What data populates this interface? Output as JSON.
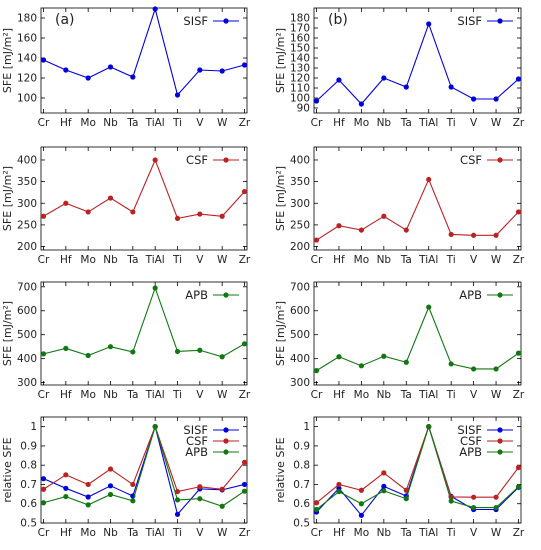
{
  "chart_data": [
    {
      "type": "line",
      "panel_label": "(a)",
      "categories": [
        "Cr",
        "Hf",
        "Mo",
        "Nb",
        "Ta",
        "TiAl",
        "Ti",
        "V",
        "W",
        "Zr"
      ],
      "ylabel": "SFE [mJ/m²]",
      "ylim": [
        85,
        190
      ],
      "yticks": [
        100,
        120,
        140,
        160,
        180
      ],
      "legend": "top-right",
      "series": [
        {
          "name": "SISF",
          "color": "#0000dd",
          "values": [
            138,
            128,
            120,
            131,
            121,
            189,
            103,
            128,
            127,
            133
          ]
        }
      ]
    },
    {
      "type": "line",
      "panel_label": "(b)",
      "categories": [
        "Cr",
        "Hf",
        "Mo",
        "Nb",
        "Ta",
        "TiAl",
        "Ti",
        "V",
        "W",
        "Zr"
      ],
      "ylabel": "SFE [mJ/m²]",
      "ylim": [
        85,
        190
      ],
      "yticks": [
        90,
        100,
        110,
        120,
        130,
        140,
        150,
        160,
        170,
        180
      ],
      "legend": "top-right",
      "series": [
        {
          "name": "SISF",
          "color": "#0000dd",
          "values": [
            97,
            118,
            94,
            120,
            111,
            174,
            111,
            99,
            99,
            119
          ]
        }
      ]
    },
    {
      "type": "line",
      "categories": [
        "Cr",
        "Hf",
        "Mo",
        "Nb",
        "Ta",
        "TiAl",
        "Ti",
        "V",
        "W",
        "Zr"
      ],
      "ylabel": "SFE [mJ/m²]",
      "ylim": [
        192,
        430
      ],
      "yticks": [
        200,
        250,
        300,
        350,
        400
      ],
      "legend": "top-right",
      "series": [
        {
          "name": "CSF",
          "color": "#bb2222",
          "values": [
            270,
            300,
            280,
            312,
            280,
            400,
            265,
            275,
            270,
            327
          ]
        }
      ]
    },
    {
      "type": "line",
      "categories": [
        "Cr",
        "Hf",
        "Mo",
        "Nb",
        "Ta",
        "TiAl",
        "Ti",
        "V",
        "W",
        "Zr"
      ],
      "ylabel": "SFE [mJ/m²]",
      "ylim": [
        192,
        430
      ],
      "yticks": [
        200,
        250,
        300,
        350,
        400
      ],
      "legend": "top-right",
      "series": [
        {
          "name": "CSF",
          "color": "#bb2222",
          "values": [
            215,
            248,
            238,
            270,
            238,
            355,
            228,
            226,
            226,
            280
          ]
        }
      ]
    },
    {
      "type": "line",
      "categories": [
        "Cr",
        "Hf",
        "Mo",
        "Nb",
        "Ta",
        "TiAl",
        "Ti",
        "V",
        "W",
        "Zr"
      ],
      "ylabel": "SFE [mJ/m²]",
      "ylim": [
        290,
        720
      ],
      "yticks": [
        300,
        400,
        500,
        600,
        700
      ],
      "legend": "top-right",
      "series": [
        {
          "name": "APB",
          "color": "#117711",
          "values": [
            420,
            443,
            413,
            450,
            428,
            695,
            430,
            435,
            408,
            462
          ]
        }
      ]
    },
    {
      "type": "line",
      "categories": [
        "Cr",
        "Hf",
        "Mo",
        "Nb",
        "Ta",
        "TiAl",
        "Ti",
        "V",
        "W",
        "Zr"
      ],
      "ylabel": "SFE [mJ/m²]",
      "ylim": [
        290,
        720
      ],
      "yticks": [
        300,
        400,
        500,
        600,
        700
      ],
      "legend": "top-right",
      "series": [
        {
          "name": "APB",
          "color": "#117711",
          "values": [
            350,
            408,
            370,
            410,
            385,
            615,
            378,
            357,
            357,
            423
          ]
        }
      ]
    },
    {
      "type": "line",
      "categories": [
        "Cr",
        "Hf",
        "Mo",
        "Nb",
        "Ta",
        "TiAl",
        "Ti",
        "V",
        "W",
        "Zr"
      ],
      "ylabel": "relative SFE",
      "ylim": [
        0.5,
        1.05
      ],
      "yticks": [
        0.5,
        0.6,
        0.7,
        0.8,
        0.9,
        1
      ],
      "legend": "top-right",
      "series": [
        {
          "name": "SISF",
          "color": "#0000dd",
          "values": [
            0.73,
            0.68,
            0.635,
            0.693,
            0.64,
            1,
            0.545,
            0.677,
            0.672,
            0.7
          ]
        },
        {
          "name": "CSF",
          "color": "#bb2222",
          "values": [
            0.675,
            0.75,
            0.7,
            0.78,
            0.7,
            1,
            0.663,
            0.688,
            0.675,
            0.815
          ]
        },
        {
          "name": "APB",
          "color": "#117711",
          "values": [
            0.605,
            0.637,
            0.594,
            0.648,
            0.615,
            1,
            0.62,
            0.626,
            0.587,
            0.665
          ]
        }
      ]
    },
    {
      "type": "line",
      "categories": [
        "Cr",
        "Hf",
        "Mo",
        "Nb",
        "Ta",
        "TiAl",
        "Ti",
        "V",
        "W",
        "Zr"
      ],
      "ylabel": "relative SFE",
      "ylim": [
        0.5,
        1.05
      ],
      "yticks": [
        0.5,
        0.6,
        0.7,
        0.8,
        0.9,
        1
      ],
      "legend": "top-right",
      "series": [
        {
          "name": "SISF",
          "color": "#0000dd",
          "values": [
            0.557,
            0.68,
            0.54,
            0.69,
            0.64,
            1,
            0.638,
            0.57,
            0.57,
            0.685
          ]
        },
        {
          "name": "CSF",
          "color": "#bb2222",
          "values": [
            0.605,
            0.7,
            0.67,
            0.76,
            0.67,
            1,
            0.635,
            0.634,
            0.634,
            0.788
          ]
        },
        {
          "name": "APB",
          "color": "#117711",
          "values": [
            0.57,
            0.663,
            0.6,
            0.667,
            0.626,
            1,
            0.614,
            0.58,
            0.58,
            0.688
          ]
        }
      ]
    }
  ]
}
